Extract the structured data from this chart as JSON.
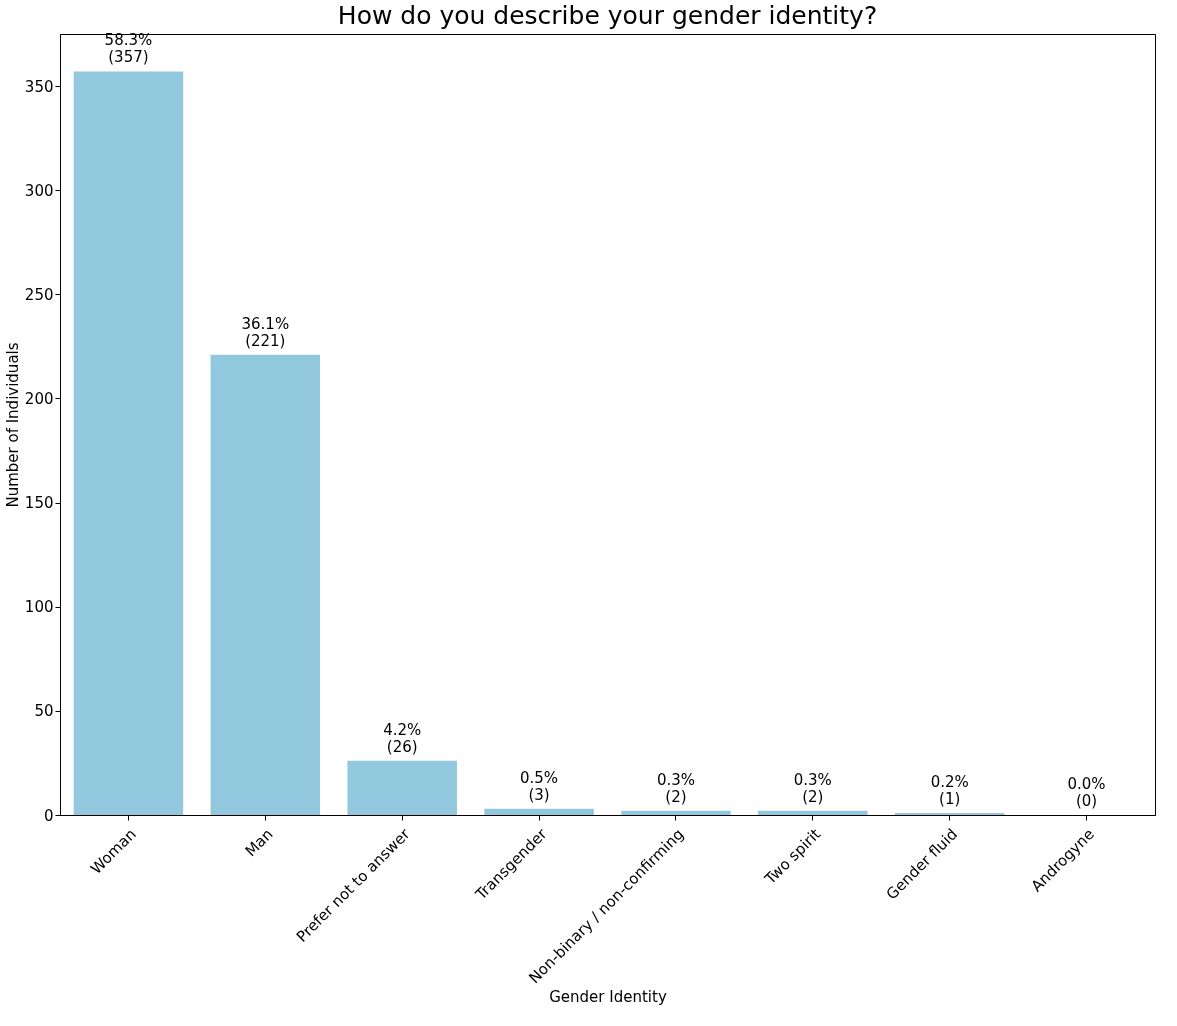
{
  "chart_data": {
    "type": "bar",
    "title": "How do you describe your gender identity?",
    "xlabel": "Gender Identity",
    "ylabel": "Number of Individuals",
    "categories": [
      "Woman",
      "Man",
      "Prefer not to answer",
      "Transgender",
      "Non-binary / non-confirming",
      "Two spirit",
      "Gender fluid",
      "Androgyne"
    ],
    "values": [
      357,
      221,
      26,
      3,
      2,
      2,
      1,
      0
    ],
    "value_labels": [
      "58.3%\n(357)",
      "36.1%\n(221)",
      "4.2%\n(26)",
      "0.5%\n(3)",
      "0.3%\n(2)",
      "0.3%\n(2)",
      "0.2%\n(1)",
      "0.0%\n(0)"
    ],
    "color": "#92c8de",
    "ylim": [
      0,
      375
    ],
    "yticks": [
      0,
      50,
      100,
      150,
      200,
      250,
      300,
      350
    ],
    "grid": false
  }
}
